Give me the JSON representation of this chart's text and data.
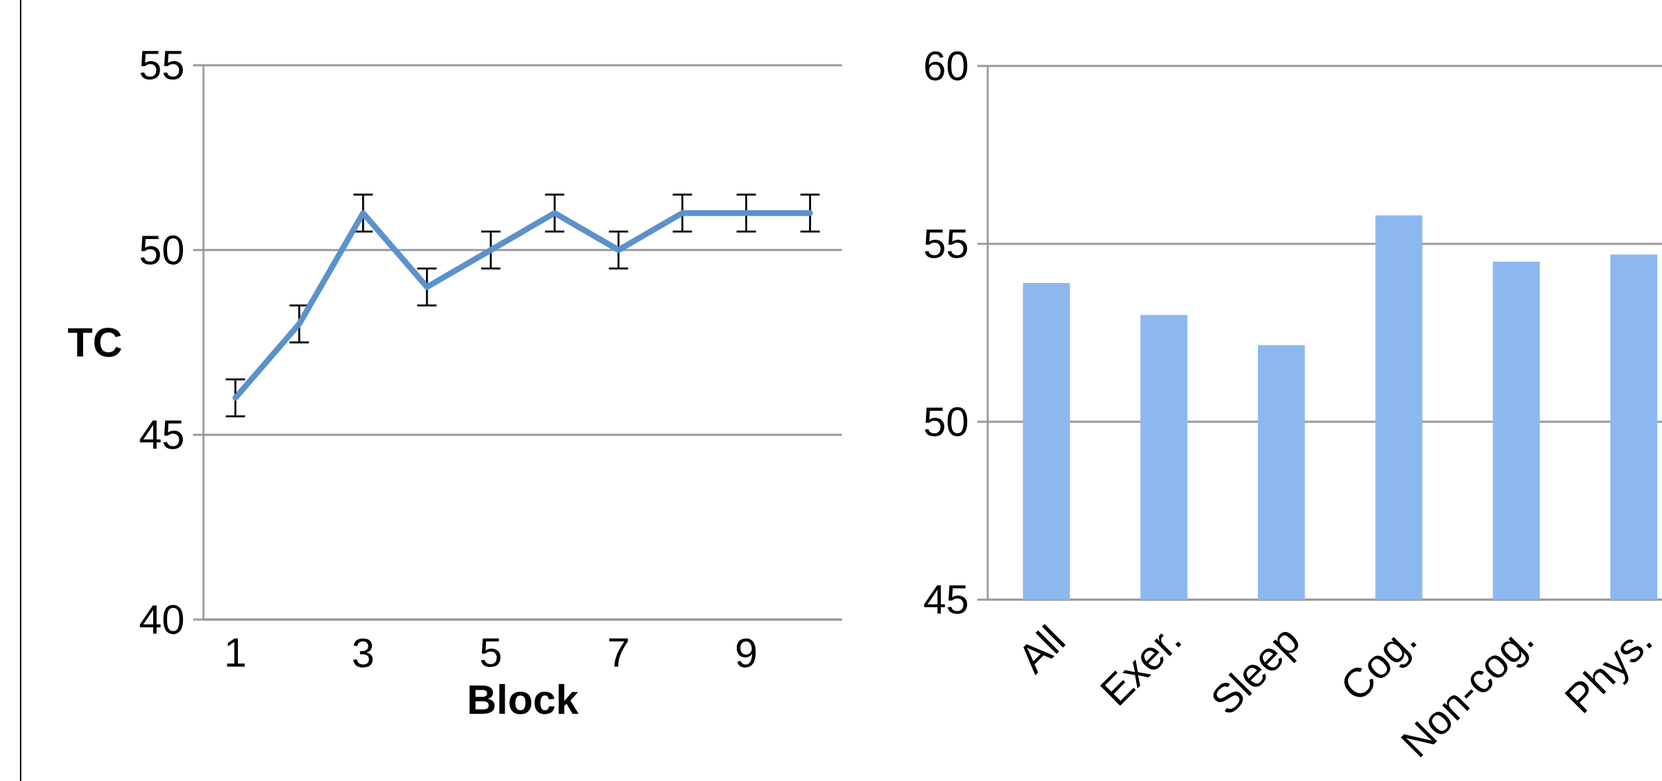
{
  "chart_data": [
    {
      "type": "line",
      "x": [
        1,
        2,
        3,
        4,
        5,
        6,
        7,
        8,
        9,
        10
      ],
      "values": [
        46,
        48,
        51,
        49,
        50,
        51,
        50,
        51,
        51,
        51
      ],
      "errors": [
        0.5,
        0.5,
        0.5,
        0.5,
        0.5,
        0.5,
        0.5,
        0.5,
        0.5,
        0.5
      ],
      "color": "#5b92cc",
      "xlim": [
        0.5,
        10.5
      ],
      "xticks": [
        1,
        3,
        5,
        7,
        9
      ],
      "ylim": [
        40,
        55
      ],
      "yticks": [
        40,
        45,
        50,
        55
      ],
      "xlabel": "Block",
      "ylabel": "TC",
      "grid": "y"
    },
    {
      "type": "bar",
      "categories": [
        "All",
        "Exer.",
        "Sleep",
        "Cog.",
        "Non-cog.",
        "Phys."
      ],
      "values": [
        53.9,
        53.0,
        52.15,
        55.8,
        54.5,
        54.7
      ],
      "color": "#8db8ef",
      "ylim": [
        45,
        60
      ],
      "yticks": [
        45,
        50,
        55,
        60
      ],
      "grid": "y"
    }
  ]
}
